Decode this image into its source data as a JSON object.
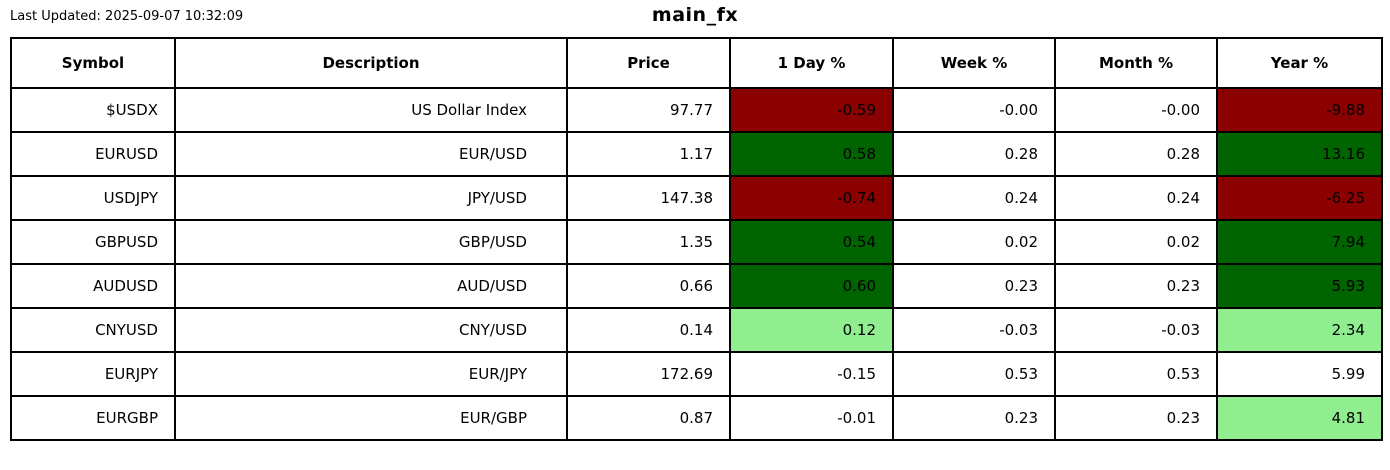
{
  "page": {
    "last_updated": "Last Updated: 2025-09-07 10:32:09",
    "title": "main_fx"
  },
  "colors": {
    "strong_negative": "#8b0000",
    "strong_positive": "#006400",
    "mild_positive": "#90ee90",
    "neutral": "#ffffff"
  },
  "table": {
    "columns": [
      {
        "key": "symbol",
        "label": "Symbol"
      },
      {
        "key": "description",
        "label": "Description"
      },
      {
        "key": "price",
        "label": "Price"
      },
      {
        "key": "day",
        "label": "1 Day %"
      },
      {
        "key": "week",
        "label": "Week %"
      },
      {
        "key": "month",
        "label": "Month %"
      },
      {
        "key": "year",
        "label": "Year %"
      }
    ],
    "rows": [
      {
        "symbol": "$USDX",
        "description": "US Dollar Index",
        "price": "97.77",
        "day": "-0.59",
        "day_bg": "strong_negative",
        "week": "-0.00",
        "week_bg": "neutral",
        "month": "-0.00",
        "month_bg": "neutral",
        "year": "-9.88",
        "year_bg": "strong_negative"
      },
      {
        "symbol": "EURUSD",
        "description": "EUR/USD",
        "price": "1.17",
        "day": "0.58",
        "day_bg": "strong_positive",
        "week": "0.28",
        "week_bg": "neutral",
        "month": "0.28",
        "month_bg": "neutral",
        "year": "13.16",
        "year_bg": "strong_positive"
      },
      {
        "symbol": "USDJPY",
        "description": "JPY/USD",
        "price": "147.38",
        "day": "-0.74",
        "day_bg": "strong_negative",
        "week": "0.24",
        "week_bg": "neutral",
        "month": "0.24",
        "month_bg": "neutral",
        "year": "-6.25",
        "year_bg": "strong_negative"
      },
      {
        "symbol": "GBPUSD",
        "description": "GBP/USD",
        "price": "1.35",
        "day": "0.54",
        "day_bg": "strong_positive",
        "week": "0.02",
        "week_bg": "neutral",
        "month": "0.02",
        "month_bg": "neutral",
        "year": "7.94",
        "year_bg": "strong_positive"
      },
      {
        "symbol": "AUDUSD",
        "description": "AUD/USD",
        "price": "0.66",
        "day": "0.60",
        "day_bg": "strong_positive",
        "week": "0.23",
        "week_bg": "neutral",
        "month": "0.23",
        "month_bg": "neutral",
        "year": "5.93",
        "year_bg": "strong_positive"
      },
      {
        "symbol": "CNYUSD",
        "description": "CNY/USD",
        "price": "0.14",
        "day": "0.12",
        "day_bg": "mild_positive",
        "week": "-0.03",
        "week_bg": "neutral",
        "month": "-0.03",
        "month_bg": "neutral",
        "year": "2.34",
        "year_bg": "mild_positive"
      },
      {
        "symbol": "EURJPY",
        "description": "EUR/JPY",
        "price": "172.69",
        "day": "-0.15",
        "day_bg": "neutral",
        "week": "0.53",
        "week_bg": "neutral",
        "month": "0.53",
        "month_bg": "neutral",
        "year": "5.99",
        "year_bg": "neutral"
      },
      {
        "symbol": "EURGBP",
        "description": "EUR/GBP",
        "price": "0.87",
        "day": "-0.01",
        "day_bg": "neutral",
        "week": "0.23",
        "week_bg": "neutral",
        "month": "0.23",
        "month_bg": "neutral",
        "year": "4.81",
        "year_bg": "mild_positive"
      }
    ]
  }
}
